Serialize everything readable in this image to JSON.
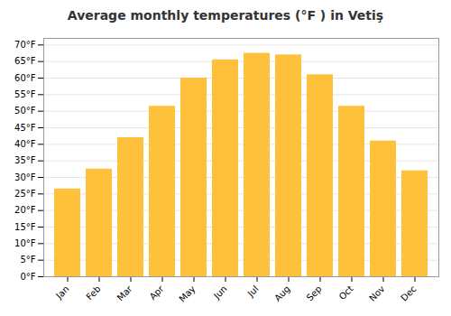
{
  "chart_data": {
    "type": "bar",
    "title": "Average monthly temperatures (°F ) in Vetiş",
    "categories": [
      "Jan",
      "Feb",
      "Mar",
      "Apr",
      "May",
      "Jun",
      "Jul",
      "Aug",
      "Sep",
      "Oct",
      "Nov",
      "Dec"
    ],
    "values": [
      26.5,
      32.5,
      42,
      51.5,
      60,
      65.5,
      67.5,
      67,
      61,
      51.5,
      41,
      32
    ],
    "color": "#FFC13B",
    "ylim": [
      0,
      72
    ],
    "yticks": [
      {
        "value": 0,
        "label": "0°F"
      },
      {
        "value": 5,
        "label": "5°F"
      },
      {
        "value": 10,
        "label": "10°F"
      },
      {
        "value": 15,
        "label": "15°F"
      },
      {
        "value": 20,
        "label": "20°F"
      },
      {
        "value": 25,
        "label": "25°F"
      },
      {
        "value": 30,
        "label": "30°F"
      },
      {
        "value": 35,
        "label": "35°F"
      },
      {
        "value": 40,
        "label": "40°F"
      },
      {
        "value": 45,
        "label": "45°F"
      },
      {
        "value": 50,
        "label": "50°F"
      },
      {
        "value": 55,
        "label": "55°F"
      },
      {
        "value": 60,
        "label": "60°F"
      },
      {
        "value": 65,
        "label": "65°F"
      },
      {
        "value": 70,
        "label": "70°F"
      }
    ],
    "grid": true
  }
}
